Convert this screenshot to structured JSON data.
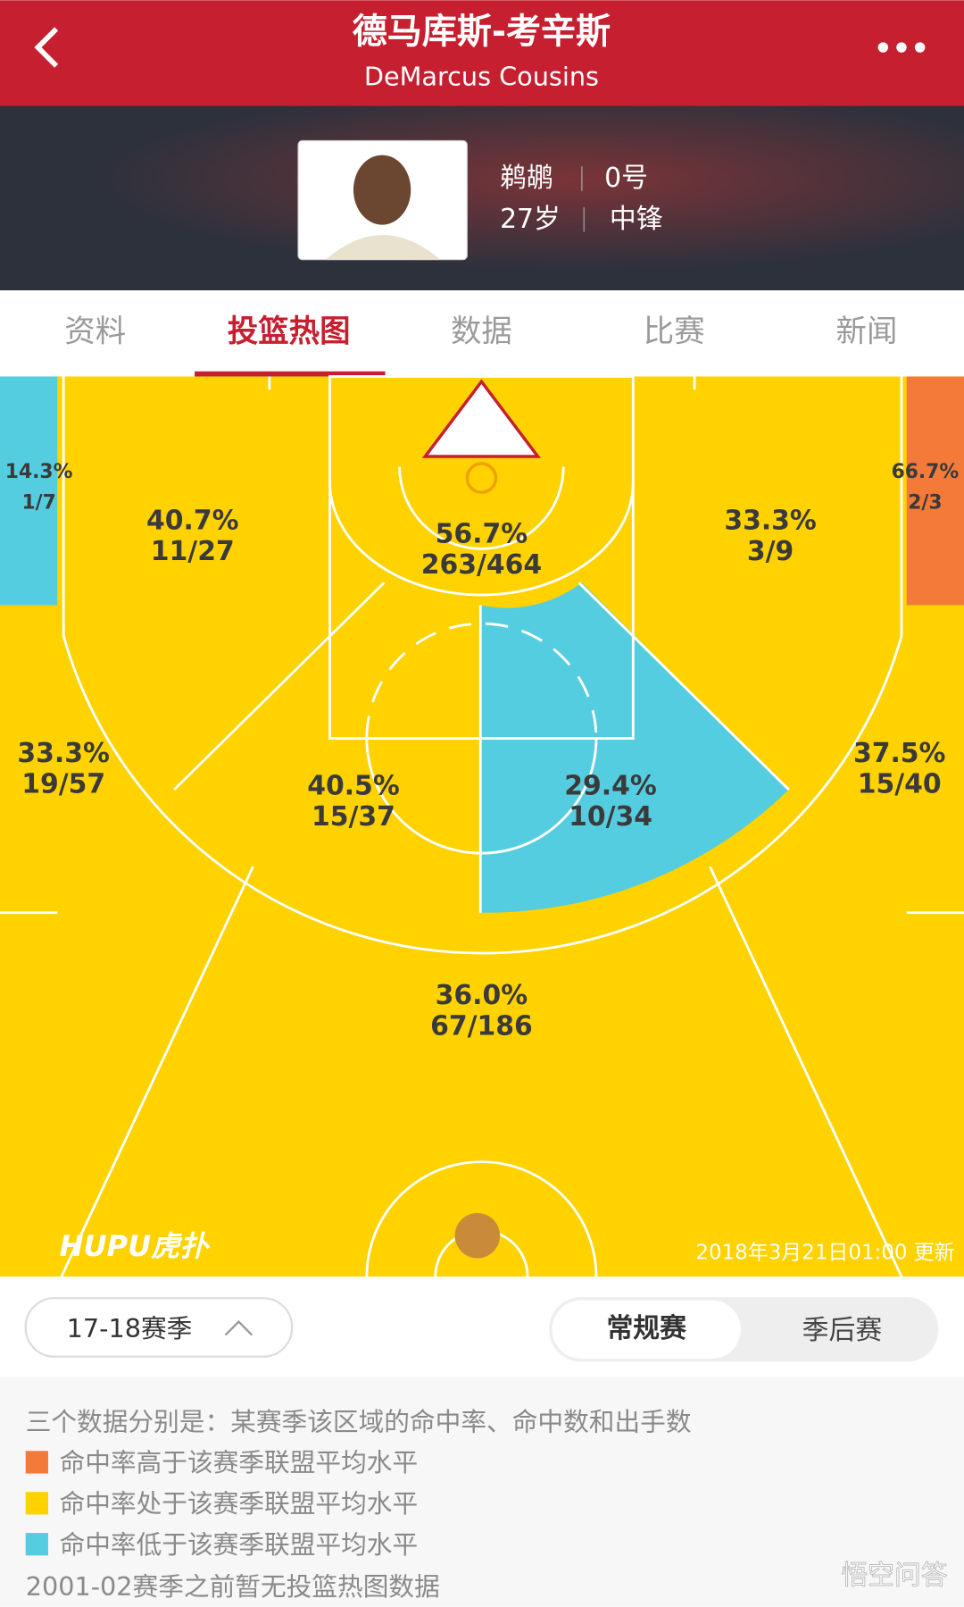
{
  "header": {
    "title": "德马库斯-考辛斯",
    "subtitle": "DeMarcus Cousins"
  },
  "player": {
    "team": "鹈鹕",
    "number": "0号",
    "age": "27岁",
    "position": "中锋"
  },
  "tabs": [
    "资料",
    "投篮热图",
    "数据",
    "比赛",
    "新闻"
  ],
  "court": {
    "zones": [
      {
        "pct": "14.3%",
        "shots": "1/7"
      },
      {
        "pct": "40.7%",
        "shots": "11/27"
      },
      {
        "pct": "56.7%",
        "shots": "263/464"
      },
      {
        "pct": "33.3%",
        "shots": "3/9"
      },
      {
        "pct": "66.7%",
        "shots": "2/3"
      },
      {
        "pct": "33.3%",
        "shots": "19/57"
      },
      {
        "pct": "40.5%",
        "shots": "15/37"
      },
      {
        "pct": "29.4%",
        "shots": "10/34"
      },
      {
        "pct": "37.5%",
        "shots": "15/40"
      },
      {
        "pct": "36.0%",
        "shots": "67/186"
      }
    ],
    "brand": "HUPU虎扑",
    "updated": "2018年3月21日01:00 更新"
  },
  "controls": {
    "season": "17-18赛季",
    "modes": [
      "常规赛",
      "季后赛"
    ]
  },
  "notes": {
    "intro": "三个数据分别是：某赛季该区域的命中率、命中数和出手数",
    "legend": [
      "命中率高于该赛季联盟平均水平",
      "命中率处于该赛季联盟平均水平",
      "命中率低于该赛季联盟平均水平"
    ],
    "footer": "2001-02赛季之前暂无投篮热图数据"
  },
  "watermark": "悟空问答"
}
